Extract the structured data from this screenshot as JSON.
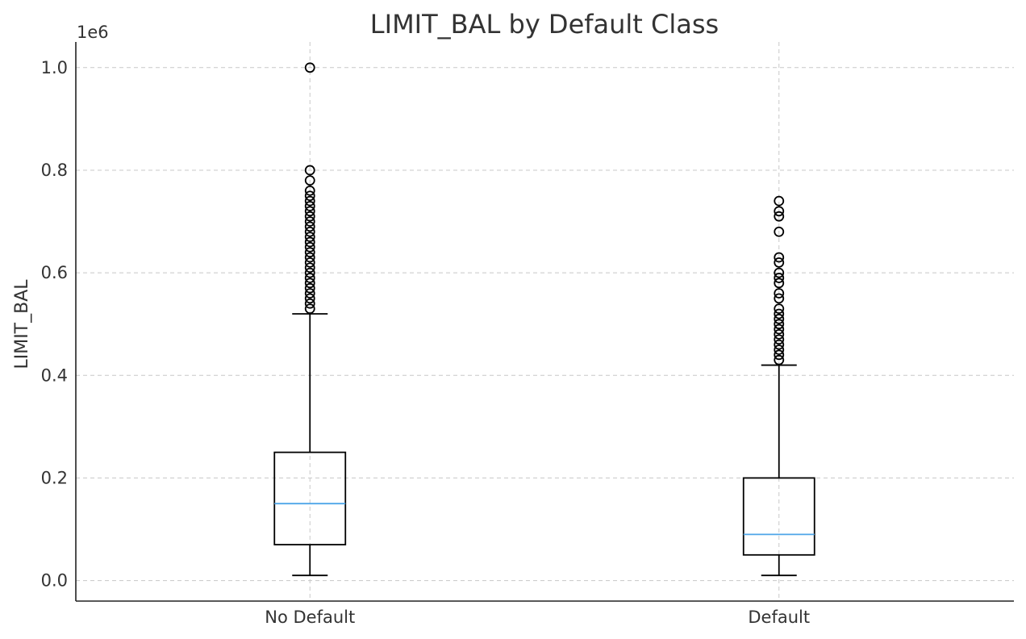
{
  "chart_data": {
    "type": "box",
    "title": "LIMIT_BAL by Default Class",
    "xlabel": "",
    "ylabel": "LIMIT_BAL",
    "y_offset_label": "1e6",
    "ylim": [
      -0.04,
      1.05
    ],
    "yticks": [
      0.0,
      0.2,
      0.4,
      0.6,
      0.8,
      1.0
    ],
    "ytick_labels": [
      "0.0",
      "0.2",
      "0.4",
      "0.6",
      "0.8",
      "1.0"
    ],
    "grid": true,
    "categories": [
      "No Default",
      "Default"
    ],
    "median_color": "#4ea6e8",
    "series": [
      {
        "category": "No Default",
        "whisker_low": 0.01,
        "q1": 0.07,
        "median": 0.15,
        "q3": 0.25,
        "whisker_high": 0.52,
        "outliers": [
          0.53,
          0.54,
          0.55,
          0.56,
          0.57,
          0.58,
          0.59,
          0.6,
          0.61,
          0.62,
          0.63,
          0.64,
          0.65,
          0.66,
          0.67,
          0.68,
          0.69,
          0.7,
          0.71,
          0.72,
          0.73,
          0.74,
          0.75,
          0.76,
          0.78,
          0.8,
          1.0
        ]
      },
      {
        "category": "Default",
        "whisker_low": 0.01,
        "q1": 0.05,
        "median": 0.09,
        "q3": 0.2,
        "whisker_high": 0.42,
        "outliers": [
          0.43,
          0.44,
          0.45,
          0.46,
          0.47,
          0.48,
          0.49,
          0.5,
          0.51,
          0.52,
          0.53,
          0.55,
          0.56,
          0.58,
          0.59,
          0.6,
          0.62,
          0.63,
          0.68,
          0.71,
          0.72,
          0.74
        ]
      }
    ]
  }
}
